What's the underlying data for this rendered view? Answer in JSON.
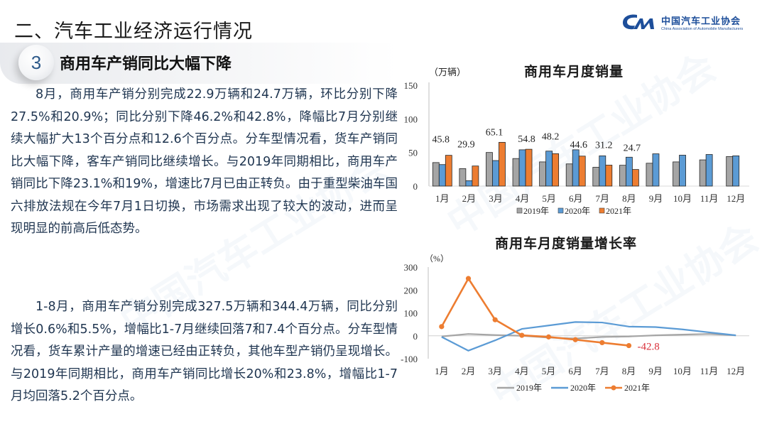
{
  "header": {
    "slide_title": "二、汽车工业经济运行情况",
    "section_number": "3",
    "section_title": "商用车产销同比大幅下降"
  },
  "logo": {
    "name_cn": "中国汽车工业协会",
    "name_en": "China Association of Automobile Manufacturers"
  },
  "watermark": "中国汽车工业协会",
  "body": {
    "paragraph1": "8月，商用车产销分别完成22.9万辆和24.7万辆，环比分别下降27.5%和20.9%；同比分别下降46.2%和42.8%，降幅比7月分别继续大幅扩大13个百分点和12.6个百分点。分车型情况看，货车产销同比大幅下降，客车产销同比继续增长。与2019年同期相比，商用车产销同比下降23.1%和19%，增速比7月已由正转负。由于重型柴油车国六排放法规在今年7月1日切换，市场需求出现了较大的波动，进而呈现明显的前高后低态势。",
    "paragraph2": "1-8月，商用车产销分别完成327.5万辆和344.4万辆，同比分别增长0.6%和5.5%，增幅比1-7月继续回落7和7.4个百分点。分车型情况看，货车累计产量的增速已经由正转负，其他车型产销仍呈现增长。与2019年同期相比，商用车产销同比增长20%和23.8%，增幅比1-7月均回落5.2个百分点。"
  },
  "colors": {
    "s2019": "#a5a5a5",
    "s2020": "#5b9bd5",
    "s2021": "#ed7d31",
    "label_red": "#d9303a",
    "text_blue": "#1f3550"
  },
  "chart_data": [
    {
      "type": "bar",
      "title": "商用车月度销量",
      "ylabel": "（万辆）",
      "xlabel": "",
      "ylim": [
        0,
        150
      ],
      "yticks": [
        0,
        50,
        100,
        150
      ],
      "grid": false,
      "legend_position": "bottom",
      "categories": [
        "1月",
        "2月",
        "3月",
        "4月",
        "5月",
        "6月",
        "7月",
        "8月",
        "9月",
        "10月",
        "11月",
        "12月"
      ],
      "series": [
        {
          "name": "2019年",
          "values": [
            35,
            26,
            50,
            41,
            36,
            33,
            28,
            31,
            34,
            36,
            39,
            44
          ]
        },
        {
          "name": "2020年",
          "values": [
            32,
            8,
            38,
            54,
            52,
            54,
            45,
            43,
            48,
            46,
            47,
            45
          ]
        },
        {
          "name": "2021年",
          "values": [
            45.8,
            29.9,
            65.1,
            54.8,
            48.2,
            44.6,
            31.2,
            24.7,
            null,
            null,
            null,
            null
          ]
        }
      ],
      "data_labels": [
        "45.8",
        "29.9",
        "65.1",
        "54.8",
        "48.2",
        "44.6",
        "31.2",
        "24.7"
      ]
    },
    {
      "type": "line",
      "title": "商用车月度销量增长率",
      "ylabel": "（%）",
      "xlabel": "",
      "ylim": [
        -100,
        300
      ],
      "yticks": [
        -100,
        0,
        100,
        200,
        300
      ],
      "grid": false,
      "legend_position": "bottom",
      "categories": [
        "1月",
        "2月",
        "3月",
        "4月",
        "5月",
        "6月",
        "7月",
        "8月",
        "9月",
        "10月",
        "11月",
        "12月"
      ],
      "series": [
        {
          "name": "2019年",
          "values": [
            -3,
            8,
            3,
            0,
            -8,
            -12,
            -5,
            -3,
            2,
            5,
            8,
            2
          ]
        },
        {
          "name": "2020年",
          "values": [
            -5,
            -65,
            -20,
            30,
            45,
            60,
            58,
            40,
            38,
            28,
            15,
            2
          ]
        },
        {
          "name": "2021年",
          "values": [
            40,
            250,
            70,
            2,
            -5,
            -17,
            -30,
            -42.8,
            null,
            null,
            null,
            null
          ]
        }
      ],
      "annotation": "-42.8"
    }
  ]
}
